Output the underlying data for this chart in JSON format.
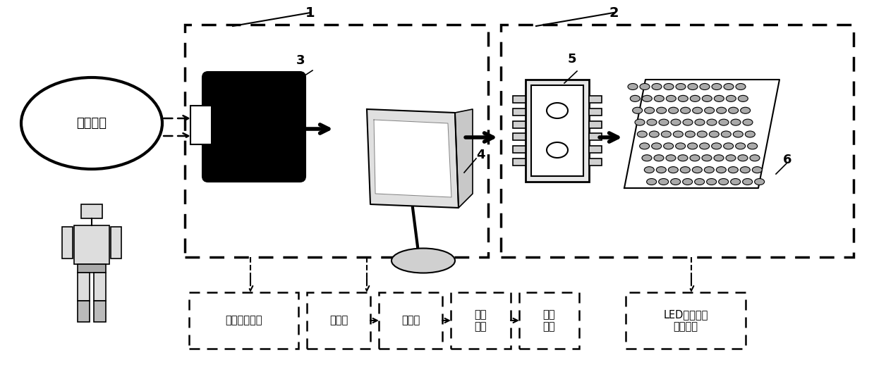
{
  "bg_color": "#ffffff",
  "fig_width": 12.39,
  "fig_height": 5.21,
  "label1": "1",
  "label2": "2",
  "label3": "3",
  "label4": "4",
  "label5": "5",
  "label6": "6",
  "ellipse_text": "病灶组织",
  "box1_text": "病灶数字图像",
  "box2_text": "灰度图",
  "box3_text": "二値图",
  "box4_text": "图像\n分割",
  "box5_text": "图像\n分析",
  "box6_text": "LED阵列依据\n信号亮灯"
}
